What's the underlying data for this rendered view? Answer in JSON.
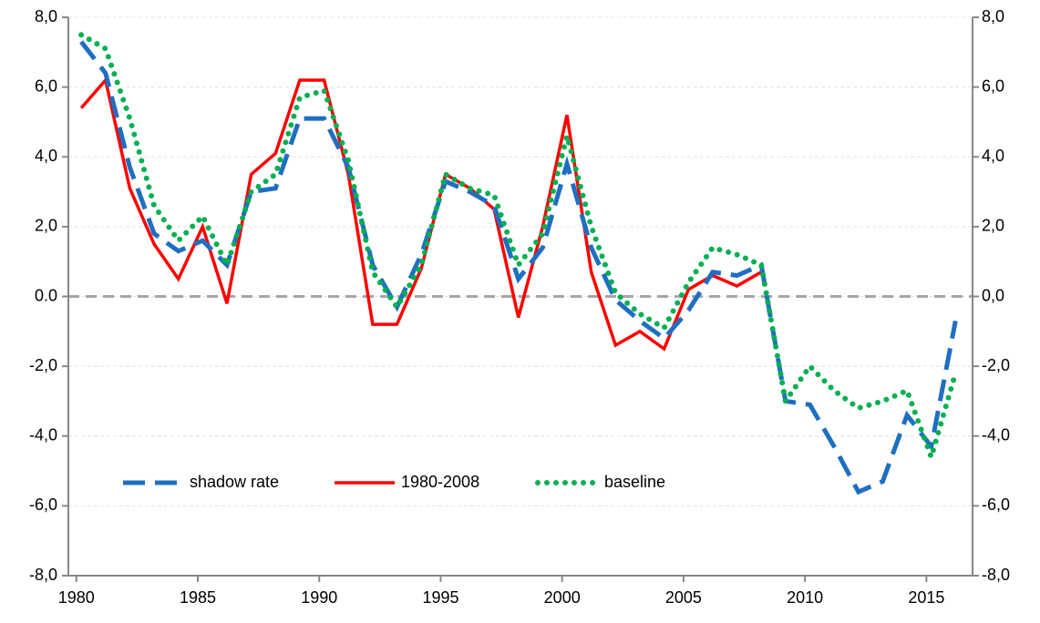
{
  "chart_data": {
    "type": "line",
    "x": [
      1980.2,
      1981.2,
      1982.2,
      1983.2,
      1984.2,
      1985.2,
      1986.2,
      1987.2,
      1988.2,
      1989.2,
      1990.2,
      1991.2,
      1992.2,
      1993.2,
      1994.2,
      1995.2,
      1996.2,
      1997.2,
      1998.2,
      1999.2,
      2000.2,
      2001.2,
      2002.2,
      2003.2,
      2004.2,
      2005.2,
      2006.2,
      2007.2,
      2008.2,
      2009.2,
      2010.2,
      2011.2,
      2012.2,
      2013.2,
      2014.2,
      2015.2,
      2016.2
    ],
    "series": [
      {
        "name": "shadow rate",
        "color": "#1f6fc0",
        "line_style": "dashed",
        "values": [
          7.3,
          6.4,
          3.7,
          1.8,
          1.3,
          1.6,
          0.9,
          3.0,
          3.1,
          5.1,
          5.1,
          3.7,
          0.9,
          -0.3,
          1.2,
          3.3,
          3.0,
          2.6,
          0.5,
          1.4,
          3.8,
          1.4,
          -0.1,
          -0.7,
          -1.2,
          -0.4,
          0.7,
          0.6,
          0.9,
          -3.0,
          -3.1,
          -4.3,
          -5.6,
          -5.3,
          -3.4,
          -4.3,
          -0.7
        ]
      },
      {
        "name": "1980-2008",
        "color": "#ff0000",
        "line_style": "solid",
        "values": [
          5.4,
          6.2,
          3.1,
          1.5,
          0.5,
          2.0,
          -0.2,
          3.5,
          4.1,
          6.2,
          6.2,
          3.5,
          -0.8,
          -0.8,
          0.8,
          3.5,
          3.1,
          2.5,
          -0.6,
          2.0,
          5.2,
          0.7,
          -1.4,
          -1.0,
          -1.5,
          0.2,
          0.6,
          0.3,
          0.7,
          null,
          null,
          null,
          null,
          null,
          null,
          null,
          null
        ]
      },
      {
        "name": "baseline",
        "color": "#00b050",
        "line_style": "dotted",
        "values": [
          7.5,
          7.1,
          5.1,
          2.6,
          1.6,
          2.3,
          0.9,
          3.0,
          3.5,
          5.7,
          5.9,
          3.9,
          0.7,
          -0.3,
          0.9,
          3.5,
          3.1,
          2.9,
          0.9,
          1.8,
          4.6,
          2.0,
          0.1,
          -0.5,
          -0.9,
          0.4,
          1.4,
          1.2,
          0.9,
          -3.0,
          -2.0,
          -2.7,
          -3.2,
          -3.0,
          -2.7,
          -4.6,
          -2.2
        ]
      }
    ],
    "xlim": [
      1979.67,
      2016.9
    ],
    "xticks": [
      1980,
      1985,
      1990,
      1995,
      2000,
      2005,
      2010,
      2015
    ],
    "ylim": [
      -8,
      8
    ],
    "yticks": [
      {
        "value": -8,
        "label": "-8,0"
      },
      {
        "value": -6,
        "label": "-6,0"
      },
      {
        "value": -4,
        "label": "-4,0"
      },
      {
        "value": -2,
        "label": "-2,0"
      },
      {
        "value": 0,
        "label": "0.0"
      },
      {
        "value": 2,
        "label": "2,0"
      },
      {
        "value": 4,
        "label": "4,0"
      },
      {
        "value": 6,
        "label": "6,0"
      },
      {
        "value": 8,
        "label": "8,0"
      }
    ],
    "y2lim": [
      -8,
      8
    ],
    "y2ticks": [
      {
        "value": -8,
        "label": "-8,0"
      },
      {
        "value": -6,
        "label": "-6,0"
      },
      {
        "value": -4,
        "label": "-4,0"
      },
      {
        "value": -2,
        "label": "-2,0"
      },
      {
        "value": 0,
        "label": "0,0"
      },
      {
        "value": 2,
        "label": "2,0"
      },
      {
        "value": 4,
        "label": "4,0"
      },
      {
        "value": 6,
        "label": "6,0"
      },
      {
        "value": 8,
        "label": "8,0"
      }
    ],
    "grid": true,
    "zero_line": true,
    "legend": "lower left"
  }
}
